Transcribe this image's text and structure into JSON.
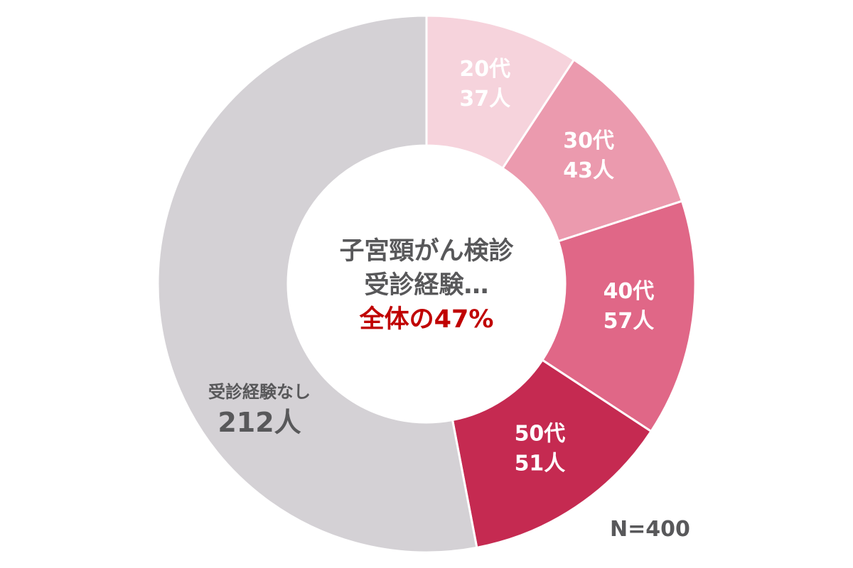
{
  "chart_data": {
    "type": "pie",
    "variant": "donut",
    "center_title_lines": [
      "子宮頸がん検診",
      "受診経験…"
    ],
    "center_highlight": "全体の47%",
    "note": "N=400",
    "start": "top",
    "direction": "clockwise",
    "slices": [
      {
        "label": "20代",
        "value_label": "37人",
        "value": 37,
        "color": "#f6d3dc",
        "text_color": "#ffffff"
      },
      {
        "label": "30代",
        "value_label": "43人",
        "value": 43,
        "color": "#eb9aae",
        "text_color": "#ffffff"
      },
      {
        "label": "40代",
        "value_label": "57人",
        "value": 57,
        "color": "#e06787",
        "text_color": "#ffffff"
      },
      {
        "label": "50代",
        "value_label": "51人",
        "value": 51,
        "color": "#c52a51",
        "text_color": "#ffffff"
      },
      {
        "label": "受診経験なし",
        "value_label": "212人",
        "value": 212,
        "color": "#d4d1d5",
        "text_color": "#58585a"
      }
    ],
    "colors": {
      "title": "#58585a",
      "highlight": "#c00000"
    }
  }
}
